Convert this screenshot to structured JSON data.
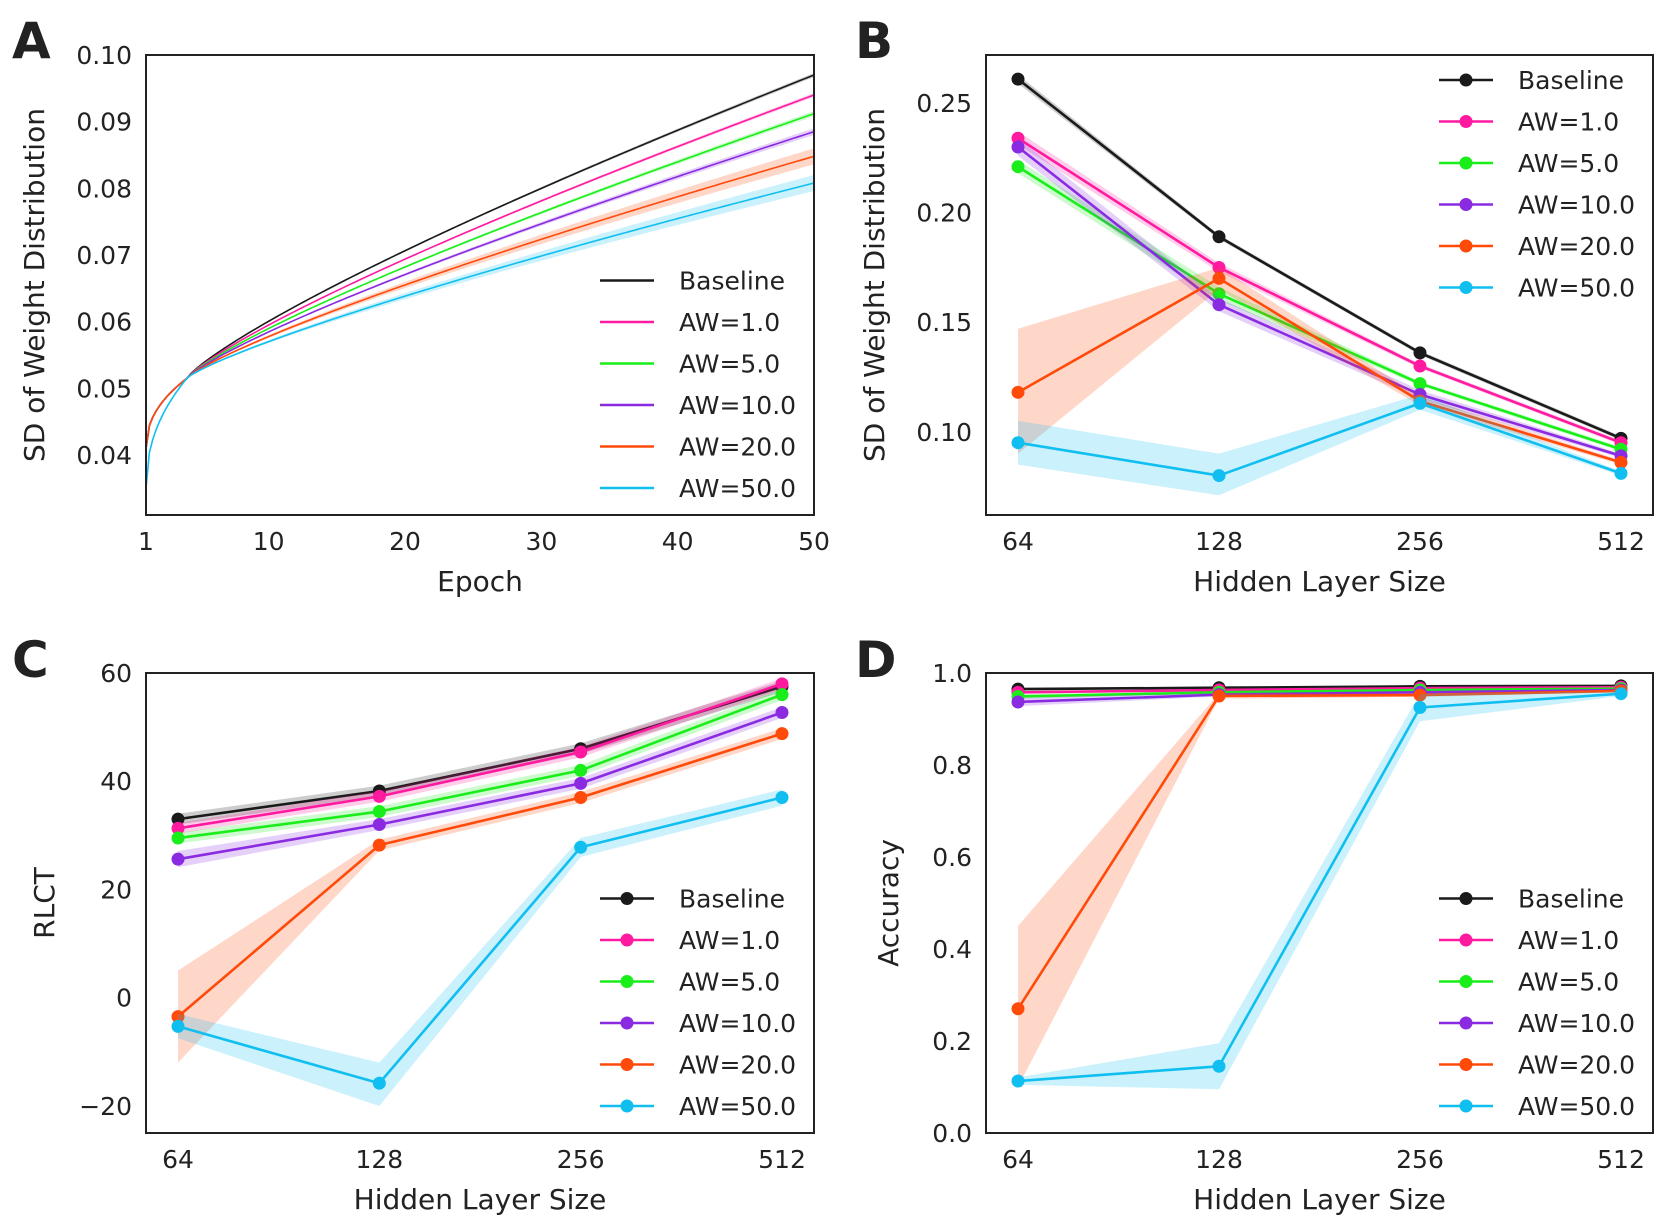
{
  "colors": {
    "Baseline": "#1a1a1a",
    "AW=1.0": "#ff1aa0",
    "AW=5.0": "#1aee1a",
    "AW=10.0": "#8a2be2",
    "AW=20.0": "#ff4a0a",
    "AW=50.0": "#10bff0"
  },
  "chart_data": [
    {
      "id": "A",
      "panel_label": "A",
      "type": "line",
      "xlabel": "Epoch",
      "ylabel": "SD of Weight Distribution",
      "xlim": [
        1,
        50
      ],
      "ylim": [
        0.031,
        0.1
      ],
      "xticks": [
        1,
        10,
        20,
        30,
        40,
        50
      ],
      "xticklabels": [
        "1",
        "10",
        "20",
        "30",
        "40",
        "50"
      ],
      "yticks": [
        0.04,
        0.05,
        0.06,
        0.07,
        0.08,
        0.09,
        0.1
      ],
      "yticklabels": [
        "0.04",
        "0.05",
        "0.06",
        "0.07",
        "0.08",
        "0.09",
        "0.10"
      ],
      "legend_position": "lower-right",
      "markers": false,
      "curve": {
        "y_start": 0.041,
        "knee_epoch": 4,
        "y_knee": 0.0515,
        "start_aw50": 0.035
      },
      "series": [
        {
          "name": "Baseline",
          "end": 0.097,
          "band": 0.0003
        },
        {
          "name": "AW=1.0",
          "end": 0.094,
          "band": 0.0003
        },
        {
          "name": "AW=5.0",
          "end": 0.0912,
          "band": 0.0004
        },
        {
          "name": "AW=10.0",
          "end": 0.0885,
          "band": 0.0005
        },
        {
          "name": "AW=20.0",
          "end": 0.0848,
          "band": 0.0012
        },
        {
          "name": "AW=50.0",
          "end": 0.0808,
          "band": 0.0012
        }
      ]
    },
    {
      "id": "B",
      "panel_label": "B",
      "type": "line",
      "xlabel": "Hidden Layer Size",
      "ylabel": "SD of Weight Distribution",
      "categories": [
        "64",
        "128",
        "256",
        "512"
      ],
      "ylim": [
        0.062,
        0.272
      ],
      "yticks": [
        0.1,
        0.15,
        0.2,
        0.25
      ],
      "yticklabels": [
        "0.10",
        "0.15",
        "0.20",
        "0.25"
      ],
      "legend_position": "upper-right",
      "markers": true,
      "series": [
        {
          "name": "Baseline",
          "values": [
            0.261,
            0.189,
            0.136,
            0.097
          ],
          "lower": [
            0.259,
            0.188,
            0.135,
            0.096
          ],
          "upper": [
            0.263,
            0.19,
            0.137,
            0.098
          ]
        },
        {
          "name": "AW=1.0",
          "values": [
            0.234,
            0.175,
            0.13,
            0.095
          ],
          "lower": [
            0.231,
            0.173,
            0.129,
            0.094
          ],
          "upper": [
            0.237,
            0.177,
            0.131,
            0.096
          ]
        },
        {
          "name": "AW=5.0",
          "values": [
            0.221,
            0.163,
            0.122,
            0.092
          ],
          "lower": [
            0.218,
            0.16,
            0.121,
            0.091
          ],
          "upper": [
            0.224,
            0.166,
            0.123,
            0.093
          ]
        },
        {
          "name": "AW=10.0",
          "values": [
            0.23,
            0.158,
            0.117,
            0.089
          ],
          "lower": [
            0.226,
            0.155,
            0.115,
            0.088
          ],
          "upper": [
            0.234,
            0.161,
            0.119,
            0.09
          ]
        },
        {
          "name": "AW=20.0",
          "values": [
            0.118,
            0.17,
            0.114,
            0.086
          ],
          "lower": [
            0.09,
            0.165,
            0.112,
            0.085
          ],
          "upper": [
            0.147,
            0.175,
            0.116,
            0.087
          ]
        },
        {
          "name": "AW=50.0",
          "values": [
            0.095,
            0.08,
            0.113,
            0.081
          ],
          "lower": [
            0.085,
            0.071,
            0.11,
            0.08
          ],
          "upper": [
            0.105,
            0.09,
            0.117,
            0.082
          ]
        }
      ]
    },
    {
      "id": "C",
      "panel_label": "C",
      "type": "line",
      "xlabel": "Hidden Layer Size",
      "ylabel": "RLCT",
      "categories": [
        "64",
        "128",
        "256",
        "512"
      ],
      "ylim": [
        -25,
        60
      ],
      "yticks": [
        -20,
        0,
        20,
        40,
        60
      ],
      "yticklabels": [
        "−20",
        "0",
        "20",
        "40",
        "60"
      ],
      "legend_position": "lower-right",
      "markers": true,
      "series": [
        {
          "name": "Baseline",
          "values": [
            33.0,
            38.2,
            46.0,
            57.5
          ],
          "lower": [
            32.0,
            37.2,
            45.0,
            56.5
          ],
          "upper": [
            34.0,
            39.2,
            47.0,
            58.5
          ]
        },
        {
          "name": "AW=1.0",
          "values": [
            31.3,
            37.2,
            45.4,
            58.0
          ],
          "lower": [
            30.3,
            36.2,
            44.4,
            57.0
          ],
          "upper": [
            32.3,
            38.2,
            46.4,
            59.0
          ]
        },
        {
          "name": "AW=5.0",
          "values": [
            29.5,
            34.4,
            42.0,
            56.0
          ],
          "lower": [
            28.5,
            33.4,
            41.0,
            55.0
          ],
          "upper": [
            30.5,
            35.4,
            43.0,
            57.0
          ]
        },
        {
          "name": "AW=10.0",
          "values": [
            25.6,
            32.0,
            39.6,
            52.7
          ],
          "lower": [
            24.1,
            31.0,
            38.6,
            51.7
          ],
          "upper": [
            27.1,
            33.0,
            40.6,
            53.7
          ]
        },
        {
          "name": "AW=20.0",
          "values": [
            -3.5,
            28.2,
            37.0,
            48.8
          ],
          "lower": [
            -12.0,
            27.2,
            36.0,
            47.8
          ],
          "upper": [
            5.0,
            29.2,
            38.0,
            49.8
          ]
        },
        {
          "name": "AW=50.0",
          "values": [
            -5.3,
            -15.8,
            27.8,
            37.0
          ],
          "lower": [
            -7.5,
            -20.0,
            26.0,
            35.5
          ],
          "upper": [
            -3.0,
            -12.0,
            29.5,
            38.5
          ]
        }
      ]
    },
    {
      "id": "D",
      "panel_label": "D",
      "type": "line",
      "xlabel": "Hidden Layer Size",
      "ylabel": "Accuracy",
      "categories": [
        "64",
        "128",
        "256",
        "512"
      ],
      "ylim": [
        0.0,
        1.0
      ],
      "yticks": [
        0.0,
        0.2,
        0.4,
        0.6,
        0.8,
        1.0
      ],
      "yticklabels": [
        "0.0",
        "0.2",
        "0.4",
        "0.6",
        "0.8",
        "1.0"
      ],
      "legend_position": "lower-right",
      "markers": true,
      "series": [
        {
          "name": "Baseline",
          "values": [
            0.965,
            0.968,
            0.971,
            0.972
          ],
          "lower": [
            0.962,
            0.966,
            0.969,
            0.97
          ],
          "upper": [
            0.968,
            0.97,
            0.973,
            0.974
          ]
        },
        {
          "name": "AW=1.0",
          "values": [
            0.958,
            0.963,
            0.967,
            0.969
          ],
          "lower": [
            0.955,
            0.96,
            0.965,
            0.967
          ],
          "upper": [
            0.961,
            0.966,
            0.969,
            0.971
          ]
        },
        {
          "name": "AW=5.0",
          "values": [
            0.949,
            0.958,
            0.963,
            0.966
          ],
          "lower": [
            0.944,
            0.955,
            0.961,
            0.964
          ],
          "upper": [
            0.954,
            0.961,
            0.965,
            0.968
          ]
        },
        {
          "name": "AW=10.0",
          "values": [
            0.937,
            0.953,
            0.958,
            0.963
          ],
          "lower": [
            0.928,
            0.949,
            0.955,
            0.96
          ],
          "upper": [
            0.946,
            0.957,
            0.961,
            0.966
          ]
        },
        {
          "name": "AW=20.0",
          "values": [
            0.27,
            0.95,
            0.952,
            0.961
          ],
          "lower": [
            0.1,
            0.944,
            0.948,
            0.958
          ],
          "upper": [
            0.45,
            0.956,
            0.956,
            0.964
          ]
        },
        {
          "name": "AW=50.0",
          "values": [
            0.113,
            0.145,
            0.925,
            0.955
          ],
          "lower": [
            0.105,
            0.095,
            0.895,
            0.95
          ],
          "upper": [
            0.121,
            0.195,
            0.955,
            0.96
          ]
        }
      ]
    }
  ]
}
